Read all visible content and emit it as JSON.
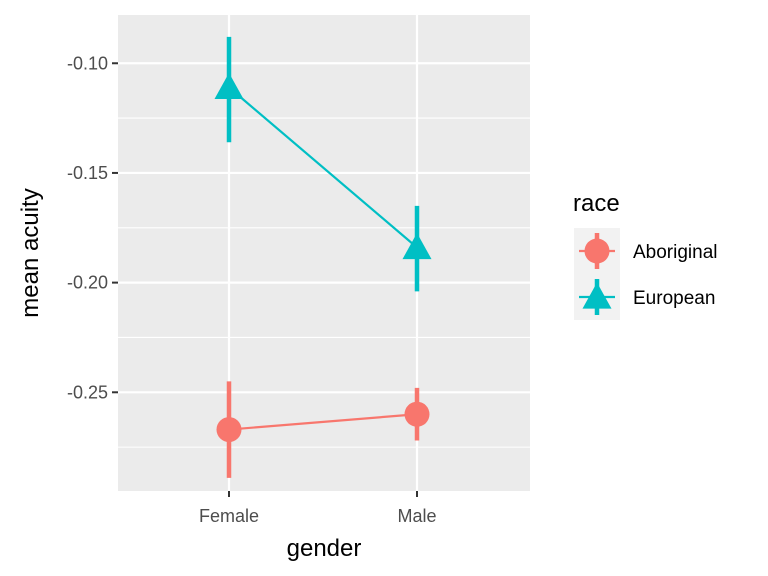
{
  "chart_data": {
    "type": "line",
    "xlabel": "gender",
    "ylabel": "mean acuity",
    "categories": [
      "Female",
      "Male"
    ],
    "ylim": [
      -0.295,
      -0.078
    ],
    "yticks": [
      -0.25,
      -0.2,
      -0.15,
      -0.1
    ],
    "ytick_labels": [
      "-0.25",
      "-0.20",
      "-0.15",
      "-0.10"
    ],
    "grid": true,
    "legend_title": "race",
    "legend_position": "right",
    "series": [
      {
        "name": "Aboriginal",
        "color": "#F8766D",
        "marker": "circle",
        "values": [
          -0.267,
          -0.26
        ],
        "err_low": [
          -0.289,
          -0.272
        ],
        "err_high": [
          -0.245,
          -0.248
        ]
      },
      {
        "name": "European",
        "color": "#00BFC4",
        "marker": "triangle",
        "values": [
          -0.111,
          -0.184
        ],
        "err_low": [
          -0.136,
          -0.204
        ],
        "err_high": [
          -0.088,
          -0.165
        ]
      }
    ],
    "panel_background": "#EBEBEB",
    "grid_color": "#FFFFFF"
  }
}
